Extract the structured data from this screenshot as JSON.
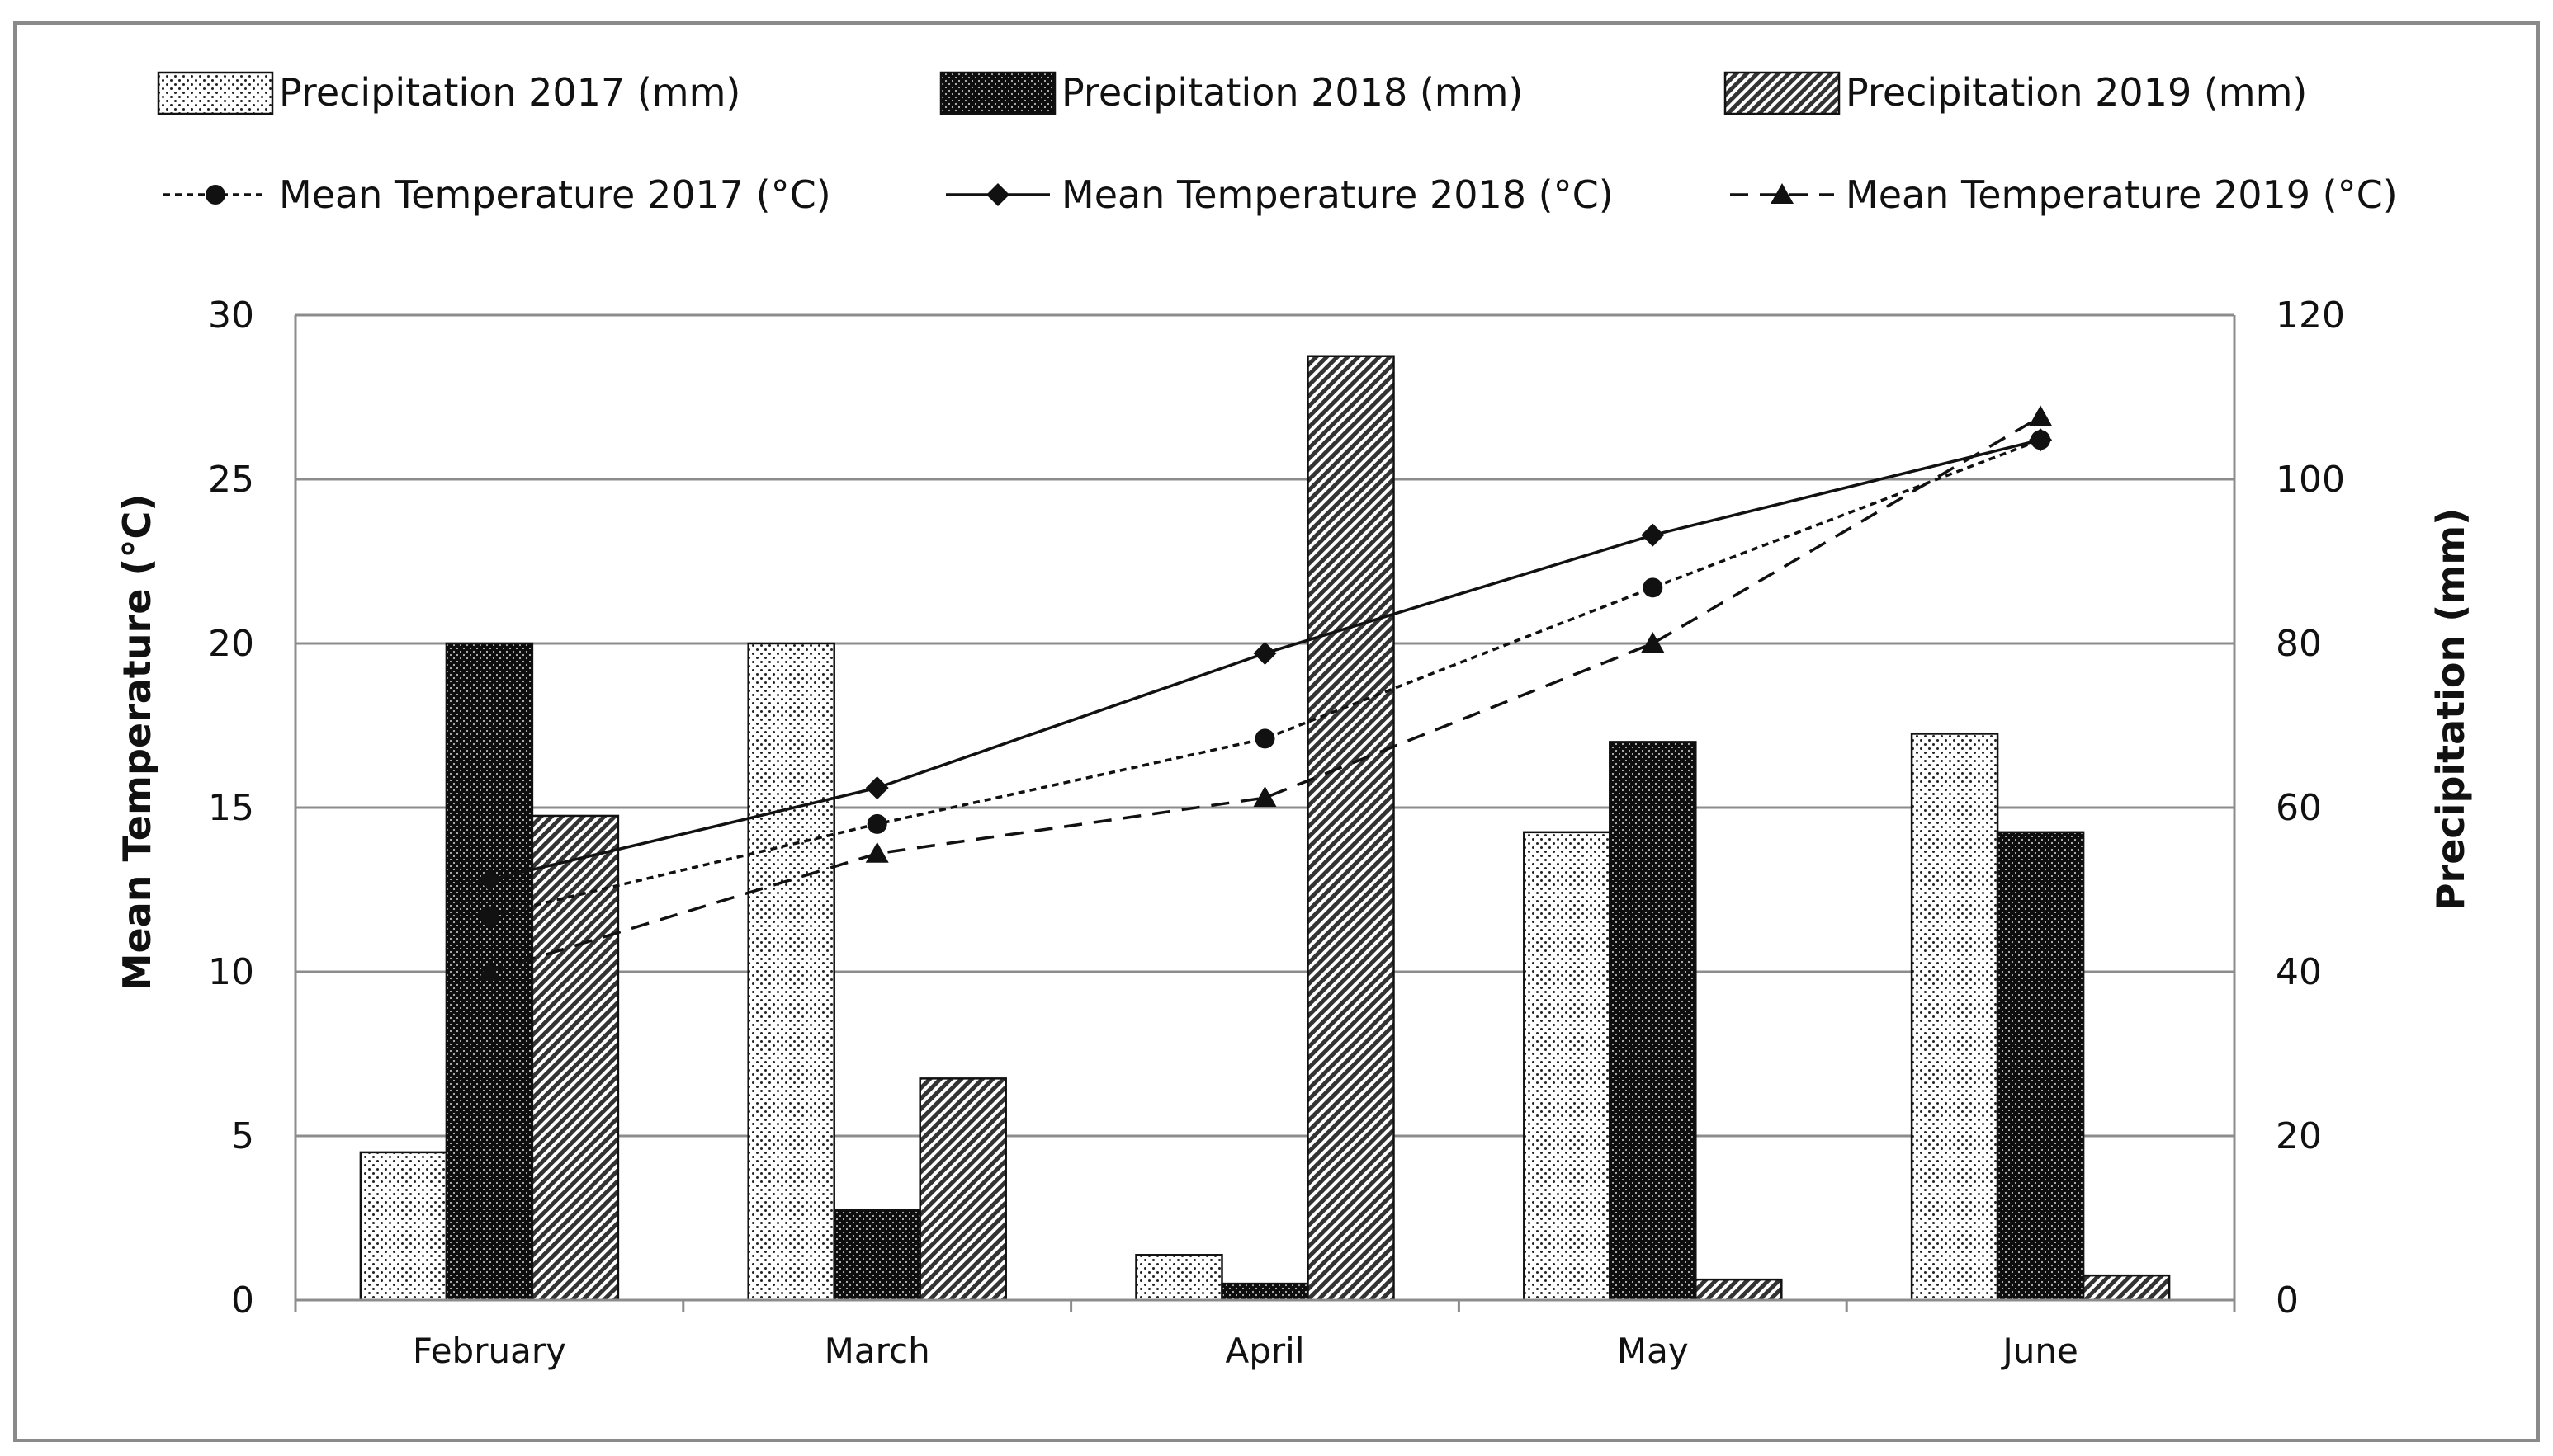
{
  "chart_data": {
    "type": "bar",
    "categories": [
      "February",
      "March",
      "April",
      "May",
      "June"
    ],
    "y_left": {
      "label": "Mean Temperature (°C)",
      "range": [
        0,
        30
      ],
      "ticks": [
        0,
        5,
        10,
        15,
        20,
        25,
        30
      ],
      "tick_labels": [
        "0",
        "5",
        "10",
        "15",
        "20",
        "25",
        "30"
      ]
    },
    "y_right": {
      "label": "Precipitation (mm)",
      "range": [
        0,
        120
      ],
      "ticks": [
        0,
        20,
        40,
        60,
        80,
        100,
        120
      ],
      "tick_labels": [
        "0",
        "20",
        "40",
        "60",
        "80",
        "100",
        "120"
      ]
    },
    "grid": true,
    "legend_position": "top",
    "bar_series": [
      {
        "name": "Precipitation 2017 (mm)",
        "axis": "right",
        "pattern": "dots",
        "values": [
          18,
          80,
          5.5,
          57,
          69
        ]
      },
      {
        "name": "Precipitation 2018 (mm)",
        "axis": "right",
        "pattern": "dense",
        "values": [
          80,
          11,
          2,
          68,
          57
        ]
      },
      {
        "name": "Precipitation 2019 (mm)",
        "axis": "right",
        "pattern": "hatch",
        "values": [
          59,
          27,
          115,
          2.5,
          3
        ]
      }
    ],
    "line_series": [
      {
        "name": "Mean Temperature 2017 (°C)",
        "axis": "left",
        "marker": "circle",
        "dash": "short",
        "values": [
          11.7,
          14.5,
          17.1,
          21.7,
          26.2
        ]
      },
      {
        "name": "Mean Temperature 2018 (°C)",
        "axis": "left",
        "marker": "diamond",
        "dash": "solid",
        "values": [
          12.8,
          15.6,
          19.7,
          23.3,
          26.2
        ]
      },
      {
        "name": "Mean Temperature 2019 (°C)",
        "axis": "left",
        "marker": "triangle",
        "dash": "long",
        "values": [
          10.0,
          13.6,
          15.3,
          20.0,
          26.9
        ]
      }
    ]
  }
}
